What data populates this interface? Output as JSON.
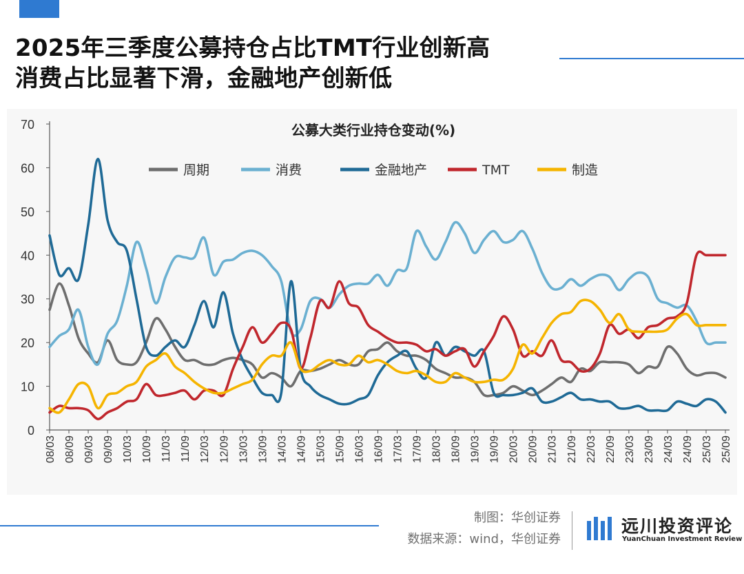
{
  "headline": {
    "line1": "2025年三季度公募持仓占比TMT行业创新高",
    "line2": "消费占比显著下滑，金融地产创新低"
  },
  "source": {
    "maker": "制图：华创证券",
    "data_source": "数据来源：wind，华创证券"
  },
  "brand": {
    "name": "远川投资评论",
    "english": "YuanChuan Investment Review",
    "logo_icon": "blue-bar-logo-icon"
  },
  "colors": {
    "accent": "#2f7ad1"
  },
  "chart_data": {
    "type": "line",
    "title": "公募大类行业持仓变动(%)",
    "xlabel": "",
    "ylabel": "",
    "ylim": [
      0,
      70
    ],
    "yticks": [
      0,
      10,
      20,
      30,
      40,
      50,
      60,
      70
    ],
    "grid": false,
    "legend_position": "top",
    "x": [
      "08/03",
      "08/06",
      "08/09",
      "08/12",
      "09/03",
      "09/06",
      "09/09",
      "09/12",
      "10/03",
      "10/06",
      "10/09",
      "10/12",
      "11/03",
      "11/06",
      "11/09",
      "11/12",
      "12/03",
      "12/06",
      "12/09",
      "12/12",
      "13/03",
      "13/06",
      "13/09",
      "13/12",
      "14/03",
      "14/06",
      "14/09",
      "14/12",
      "15/03",
      "15/06",
      "15/09",
      "15/12",
      "16/03",
      "16/06",
      "16/09",
      "16/12",
      "17/03",
      "17/06",
      "17/09",
      "17/12",
      "18/03",
      "18/06",
      "18/09",
      "18/12",
      "19/03",
      "19/06",
      "19/09",
      "19/12",
      "20/03",
      "20/06",
      "20/09",
      "20/12",
      "21/03",
      "21/06",
      "21/09",
      "21/12",
      "22/03",
      "22/06",
      "22/09",
      "22/12",
      "23/03",
      "23/06",
      "23/09",
      "23/12",
      "24/03",
      "24/06",
      "24/09",
      "24/12",
      "25/03",
      "25/06",
      "25/09"
    ],
    "x_tick_labels": [
      "08/03",
      "08/09",
      "09/03",
      "09/09",
      "10/03",
      "10/09",
      "11/03",
      "11/09",
      "12/03",
      "12/09",
      "13/03",
      "13/09",
      "14/03",
      "14/09",
      "15/03",
      "15/09",
      "16/03",
      "16/09",
      "17/03",
      "17/09",
      "18/03",
      "18/09",
      "19/03",
      "19/09",
      "20/03",
      "20/09",
      "21/03",
      "21/09",
      "22/03",
      "22/09",
      "23/03",
      "23/09",
      "24/03",
      "24/09",
      "25/03",
      "25/09"
    ],
    "series": [
      {
        "name": "周期",
        "color": "#6e6e6e",
        "values": [
          27.5,
          33.5,
          28.5,
          21,
          17.5,
          15.5,
          20.5,
          16,
          15,
          15.5,
          20,
          25.5,
          23,
          19,
          16,
          16,
          15,
          15,
          16,
          16.5,
          16,
          15,
          12,
          13,
          12,
          10,
          13.5,
          13.5,
          14,
          15,
          16,
          15,
          15,
          18,
          18.5,
          20,
          18,
          17,
          17,
          16,
          14,
          13,
          12,
          12,
          11,
          8,
          8,
          8.5,
          10,
          9,
          8,
          9,
          10.5,
          12,
          11,
          14,
          13.5,
          15.5,
          15.5,
          15.5,
          15,
          13,
          14.5,
          14.5,
          19,
          17.5,
          14,
          12.5,
          13,
          13,
          12
        ]
      },
      {
        "name": "消费",
        "color": "#6bb0d1",
        "values": [
          19,
          21.5,
          23,
          27.5,
          19,
          15,
          22,
          25,
          33,
          43,
          37,
          29,
          35,
          39.5,
          39.5,
          39.5,
          44,
          35.5,
          38.5,
          39,
          40.5,
          41,
          40,
          37.5,
          34,
          22.5,
          23,
          29.5,
          30,
          28,
          31,
          33,
          33.5,
          33.5,
          35.5,
          33,
          36.5,
          37,
          45.5,
          42,
          39,
          43,
          47.5,
          45,
          40.5,
          43.5,
          45.5,
          43,
          43.5,
          45.5,
          41.5,
          36,
          32.5,
          32.5,
          34.5,
          33,
          34.5,
          35.5,
          35,
          32,
          34.5,
          36,
          35,
          30,
          29,
          28,
          28.5,
          25,
          20,
          20,
          20
        ]
      },
      {
        "name": "金融地产",
        "color": "#1f6a96",
        "values": [
          44.5,
          35.5,
          37,
          34.5,
          47,
          62,
          48,
          43,
          41,
          30,
          19,
          17,
          19,
          20.5,
          19,
          24,
          29.5,
          23.5,
          31.5,
          22,
          16,
          12,
          8.5,
          8,
          8.5,
          34,
          14,
          10,
          8,
          7,
          6,
          6,
          7,
          8,
          12.5,
          15.5,
          17,
          18,
          14,
          12,
          20,
          17,
          19,
          18,
          17,
          18,
          8.5,
          8,
          8,
          8.5,
          9.5,
          6.5,
          6.5,
          7.5,
          8.5,
          7,
          7,
          6.5,
          6.5,
          5,
          5,
          5.5,
          4.5,
          4.5,
          4.5,
          6.5,
          6,
          5.5,
          7,
          6.5,
          4
        ]
      },
      {
        "name": "TMT",
        "color": "#c0272d",
        "values": [
          4,
          5.5,
          5,
          5,
          4.5,
          2.5,
          4,
          5,
          6.5,
          7,
          10.5,
          8,
          8,
          8.5,
          9,
          7,
          9,
          9,
          8,
          14,
          19,
          23.5,
          20,
          22,
          24.5,
          23,
          14,
          21,
          29.5,
          28,
          34,
          29,
          28,
          24,
          22.5,
          21,
          20,
          20,
          19.5,
          18,
          18.5,
          17,
          18,
          18.5,
          14.5,
          18,
          21.5,
          26,
          23,
          17,
          18,
          17,
          20.5,
          16,
          15.5,
          13.5,
          14,
          17.5,
          24,
          22,
          23,
          21,
          23.5,
          24,
          25.5,
          26,
          29,
          40,
          40,
          40,
          40
        ]
      },
      {
        "name": "制造",
        "color": "#f5b400",
        "values": [
          5,
          4,
          7,
          10.5,
          10,
          5,
          8,
          8.5,
          10,
          11,
          14.5,
          16,
          17.5,
          14.5,
          13,
          11,
          9.5,
          8.5,
          8.5,
          9.5,
          10.5,
          11.5,
          15,
          17,
          17,
          20,
          14,
          13.5,
          15,
          16,
          15,
          15,
          17,
          15.5,
          16,
          15,
          13.5,
          13,
          13.5,
          12.5,
          11,
          11,
          13,
          12,
          11,
          11,
          11.5,
          11.5,
          14,
          19.5,
          17.5,
          21,
          24.5,
          26.5,
          27,
          29.5,
          29.5,
          27.5,
          24.5,
          26.5,
          23,
          22.5,
          22.5,
          22.5,
          23,
          25.5,
          26.5,
          24,
          24,
          24,
          24
        ]
      }
    ]
  }
}
